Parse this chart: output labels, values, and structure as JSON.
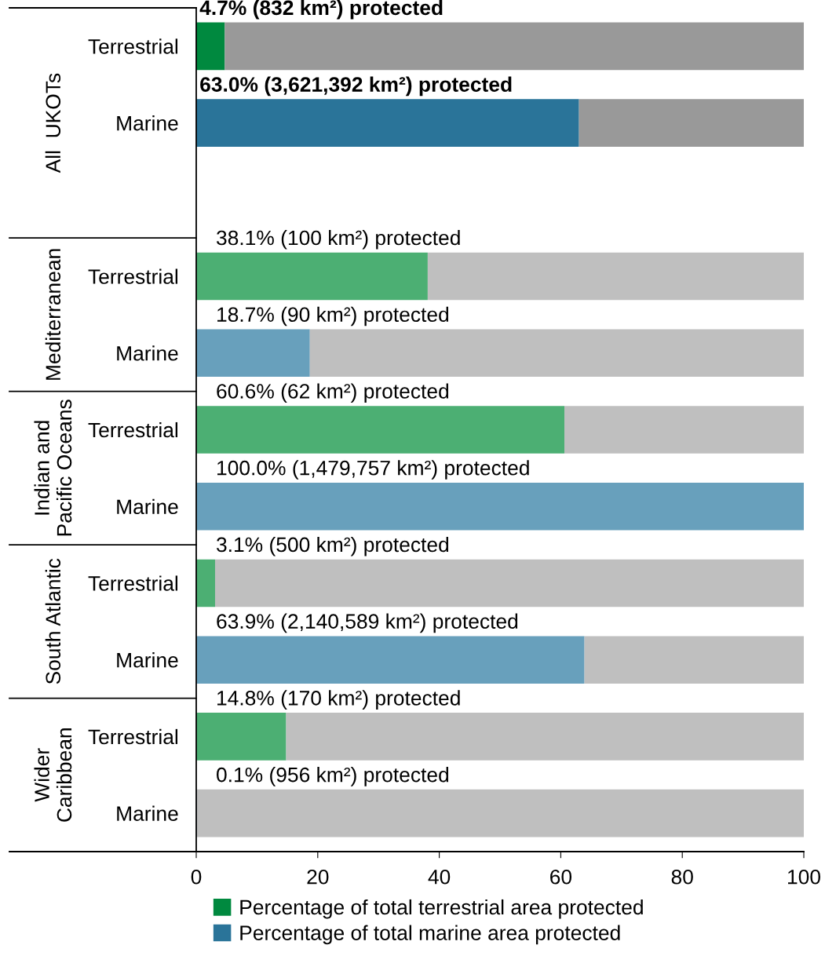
{
  "chart_data": {
    "type": "bar",
    "orientation": "horizontal",
    "stacked": true,
    "categories": [
      "Terrestrial",
      "Marine",
      null,
      "Terrestrial",
      "Marine",
      "Terrestrial",
      "Marine",
      "Terrestrial",
      "Marine",
      "Terrestrial",
      "Marine"
    ],
    "series": [
      {
        "name": "Percentage of total terrestrial area protected",
        "color": "#00893f",
        "colors": [
          "#00893f",
          null,
          null,
          "#4caf73",
          null,
          "#4caf73",
          null,
          "#4caf73",
          null,
          "#4caf73",
          null
        ],
        "values": [
          4.7,
          null,
          null,
          38.1,
          null,
          60.6,
          null,
          3.1,
          null,
          14.8,
          null
        ],
        "value_labels": [
          "4.7% (832 km²) protected",
          null,
          null,
          "38.1% (100 km²) protected",
          null,
          "60.6% (62 km²) protected",
          null,
          "3.1% (500 km²) protected",
          null,
          "14.8% (170 km²) protected",
          null
        ]
      },
      {
        "name": "Percentage of total marine area protected",
        "color": "#2a7499",
        "colors": [
          null,
          "#2a7499",
          null,
          null,
          "#68a0bc",
          null,
          "#68a0bc",
          null,
          "#68a0bc",
          null,
          "#68a0bc"
        ],
        "values": [
          null,
          63.0,
          null,
          null,
          18.7,
          null,
          100.0,
          null,
          63.9,
          null,
          0.1
        ],
        "value_labels": [
          null,
          "63.0% (3,621,392 km²) protected",
          null,
          null,
          "18.7% (90 km²) protected",
          null,
          "100.0% (1,479,757 km²) protected",
          null,
          "63.9% (2,140,589 km²) protected",
          null,
          "0.1% (956 km²) protected"
        ]
      },
      {
        "colors": [
          "#999999",
          "#999999",
          null,
          "#bfbfbf",
          "#bfbfbf",
          "#bfbfbf",
          "#bfbfbf",
          "#bfbfbf",
          "#bfbfbf",
          "#bfbfbf",
          "#bfbfbf"
        ],
        "values": [
          95.3,
          37.0,
          null,
          61.9,
          81.3,
          39.4,
          0.0,
          96.9,
          36.1,
          85.2,
          99.9
        ]
      }
    ],
    "annotations": [
      "All  UKOTs",
      "Mediterranean",
      "Indian and\nPacific Oceans",
      "South Atlantic",
      "Wider\nCaribbean"
    ],
    "xlim": [
      0,
      100
    ],
    "xticks": [
      0,
      20,
      40,
      60,
      80,
      100
    ],
    "grid": false,
    "legend": "bottom"
  }
}
